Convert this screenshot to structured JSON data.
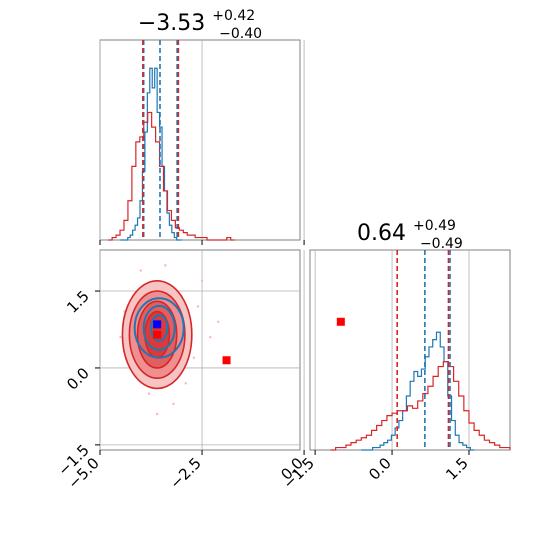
{
  "chart_data": {
    "type": "corner",
    "parameters": [
      {
        "index": 0,
        "title": {
          "value": "−3.53",
          "sup": "+0.42",
          "sub": "−0.40"
        },
        "range": [
          -5.0,
          -0.1
        ],
        "ticks": [
          -5.0,
          -2.5,
          0.0
        ],
        "tick_labels": [
          "−5.0",
          "−2.5",
          "0.0"
        ]
      },
      {
        "index": 1,
        "title": {
          "value": "0.64",
          "sup": "+0.49",
          "sub": "−0.49"
        },
        "range": [
          -1.6,
          2.3
        ],
        "ticks": [
          -1.5,
          0.0,
          1.5
        ],
        "tick_labels": [
          "−1.5",
          "0.0",
          "1.5"
        ]
      }
    ],
    "colors": {
      "blue": "#1f77b4",
      "red": "#d62728",
      "grid": "#b0b0b0",
      "marker_blue": "#0000ff",
      "marker_red": "#ff0000"
    },
    "grid": true,
    "series": [
      {
        "color": "blue",
        "hist1": {
          "edges": [
            -4.5,
            -3.0
          ],
          "counts": [
            0,
            0,
            0,
            1,
            2,
            4,
            6,
            9,
            16,
            28,
            44,
            60,
            70,
            62,
            70,
            52,
            46,
            30,
            20,
            11,
            6,
            3,
            1,
            0,
            0
          ]
        },
        "quantile_lines_p0": [
          -3.93,
          -3.53,
          -3.11
        ],
        "hist2": {
          "edges": [
            -0.6,
            1.6
          ],
          "counts": [
            0,
            0,
            0,
            1,
            1,
            2,
            3,
            4,
            6,
            9,
            12,
            16,
            22,
            28,
            32,
            30,
            33,
            38,
            42,
            45,
            48,
            42,
            36,
            22,
            12,
            6,
            3,
            2,
            1,
            0
          ]
        },
        "quantile_lines_p1": [
          0.64,
          1.13
        ],
        "contour_center": [
          -3.55,
          0.78
        ],
        "contour_radii": [
          [
            0.6,
            0.58
          ],
          [
            0.38,
            0.43
          ],
          [
            0.2,
            0.25
          ]
        ],
        "marker": [
          -3.6,
          0.85
        ]
      },
      {
        "color": "red",
        "hist1": {
          "edges": [
            -4.8,
            -1.7
          ],
          "counts": [
            0,
            1,
            2,
            4,
            8,
            16,
            30,
            40,
            42,
            48,
            52,
            46,
            40,
            30,
            20,
            12,
            8,
            5,
            4,
            3,
            2,
            2,
            1,
            1,
            1,
            0,
            0,
            0,
            0,
            0,
            1,
            0
          ]
        },
        "quantile_lines_p0": [
          -3.95,
          -3.08
        ],
        "hist2": {
          "edges": [
            -1.2,
            2.3
          ],
          "counts": [
            0,
            1,
            1,
            2,
            3,
            4,
            5,
            6,
            8,
            10,
            12,
            14,
            15,
            16,
            16,
            18,
            17,
            20,
            23,
            26,
            30,
            34,
            36,
            34,
            28,
            22,
            16,
            11,
            8,
            6,
            4,
            3,
            2,
            1,
            1
          ]
        },
        "quantile_lines_p1": [
          0.1,
          1.1
        ],
        "contour_center": [
          -3.6,
          0.65
        ],
        "contour_radii": [
          [
            0.85,
            1.05
          ],
          [
            0.68,
            0.85
          ],
          [
            0.48,
            0.65
          ],
          [
            0.3,
            0.45
          ]
        ],
        "marker": [
          -3.6,
          0.65
        ]
      }
    ],
    "extra_markers": [
      [
        0.9,
        0.9
      ],
      [
        -1.9,
        0.15
      ]
    ]
  }
}
